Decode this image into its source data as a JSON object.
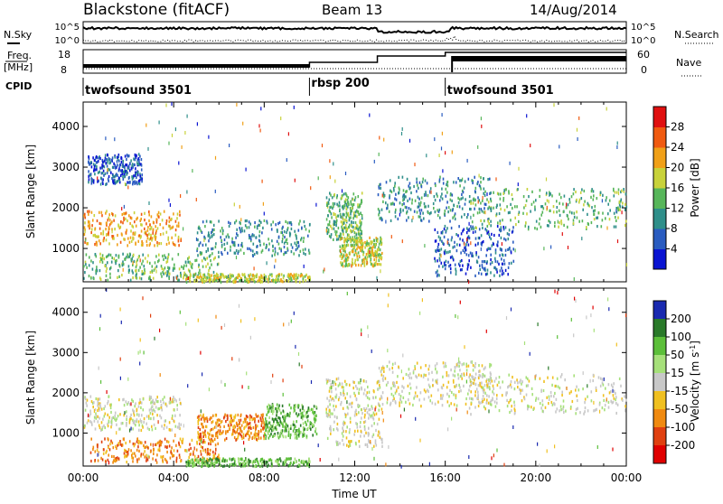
{
  "header": {
    "station": "Blackstone (fitACF)",
    "beam": "Beam 13",
    "date": "14/Aug/2014"
  },
  "noise_panel": {
    "left_label": "N.Sky",
    "right_label": "N.Search",
    "left_ticks": [
      "10^5",
      "10^0"
    ],
    "right_ticks": [
      "10^5",
      "10^0"
    ]
  },
  "freq_panel": {
    "left_label_top": "Freq.",
    "left_label_unit": "[MHz]",
    "left_ticks": [
      "18",
      "8"
    ],
    "right_label": "Nave",
    "right_ticks": [
      "60",
      "0"
    ]
  },
  "cpid": {
    "label": "CPID",
    "segments": [
      {
        "name": "twofsound 3501",
        "start_hour": 0,
        "end_hour": 10
      },
      {
        "name": "rbsp 200",
        "start_hour": 10,
        "end_hour": 16
      },
      {
        "name": "twofsound 3501",
        "start_hour": 16,
        "end_hour": 24
      }
    ]
  },
  "time_axis": {
    "label": "Time UT",
    "ticks": [
      "00:00",
      "04:00",
      "08:00",
      "12:00",
      "16:00",
      "20:00",
      "00:00"
    ]
  },
  "chart_data": [
    {
      "type": "heatmap",
      "title": "",
      "xlabel": "Time UT",
      "ylabel": "Slant Range [km]",
      "xlim_hours": [
        0,
        24
      ],
      "ylim": [
        180,
        4600
      ],
      "yticks": [
        1000,
        2000,
        3000,
        4000
      ],
      "colorbar": {
        "label": "Power [dB]",
        "ticks": [
          "4",
          "8",
          "12",
          "16",
          "20",
          "24",
          "28"
        ],
        "colors": [
          "#0a14d2",
          "#2a5cc0",
          "#2f8f8a",
          "#57b65a",
          "#c8d23a",
          "#f0a018",
          "#f05a10",
          "#e01010"
        ]
      },
      "regions": [
        {
          "t0": 0.0,
          "t1": 4.3,
          "r0": 1100,
          "r1": 1950,
          "power_db": 24
        },
        {
          "t0": 0.0,
          "t1": 6.0,
          "r0": 250,
          "r1": 900,
          "power_db": 14
        },
        {
          "t0": 0.2,
          "t1": 2.6,
          "r0": 2600,
          "r1": 3350,
          "power_db": 8
        },
        {
          "t0": 5.0,
          "t1": 10.0,
          "r0": 850,
          "r1": 1750,
          "power_db": 10
        },
        {
          "t0": 4.5,
          "t1": 10.0,
          "r0": 200,
          "r1": 400,
          "power_db": 20
        },
        {
          "t0": 10.7,
          "t1": 12.3,
          "r0": 1200,
          "r1": 2400,
          "power_db": 14
        },
        {
          "t0": 11.3,
          "t1": 13.2,
          "r0": 600,
          "r1": 1300,
          "power_db": 20
        },
        {
          "t0": 13.0,
          "t1": 18.0,
          "r0": 1700,
          "r1": 2800,
          "power_db": 10
        },
        {
          "t0": 15.5,
          "t1": 19.0,
          "r0": 350,
          "r1": 1600,
          "power_db": 6
        },
        {
          "t0": 17.0,
          "t1": 24.0,
          "r0": 1500,
          "r1": 2500,
          "power_db": 14
        }
      ]
    },
    {
      "type": "heatmap",
      "title": "",
      "xlabel": "Time UT",
      "ylabel": "Slant Range [km]",
      "xlim_hours": [
        0,
        24
      ],
      "ylim": [
        180,
        4600
      ],
      "yticks": [
        1000,
        2000,
        3000,
        4000
      ],
      "colorbar": {
        "label": "Velocity [m s^-1]",
        "ticks": [
          "200",
          "100",
          "50",
          "15",
          "-15",
          "-50",
          "-100",
          "-200"
        ],
        "colors": [
          "#1a2ab0",
          "#2a7a2a",
          "#5cbf3a",
          "#a6e07a",
          "#c8c8c8",
          "#f0c020",
          "#f08a10",
          "#e04010",
          "#e00000"
        ]
      },
      "regions": [
        {
          "t0": 0.0,
          "t1": 4.3,
          "r0": 1100,
          "r1": 1950,
          "velocity_ms": 0
        },
        {
          "t0": 0.3,
          "t1": 6.0,
          "r0": 300,
          "r1": 900,
          "velocity_ms": -40
        },
        {
          "t0": 5.0,
          "t1": 8.0,
          "r0": 850,
          "r1": 1500,
          "velocity_ms": -50
        },
        {
          "t0": 8.0,
          "t1": 10.3,
          "r0": 900,
          "r1": 1750,
          "velocity_ms": 60
        },
        {
          "t0": 4.5,
          "t1": 10.0,
          "r0": 200,
          "r1": 400,
          "velocity_ms": 40
        },
        {
          "t0": 10.7,
          "t1": 13.2,
          "r0": 700,
          "r1": 2400,
          "velocity_ms": 0
        },
        {
          "t0": 13.0,
          "t1": 18.0,
          "r0": 1700,
          "r1": 2800,
          "velocity_ms": 0
        },
        {
          "t0": 17.0,
          "t1": 24.0,
          "r0": 1500,
          "r1": 2500,
          "velocity_ms": 0
        }
      ]
    }
  ]
}
